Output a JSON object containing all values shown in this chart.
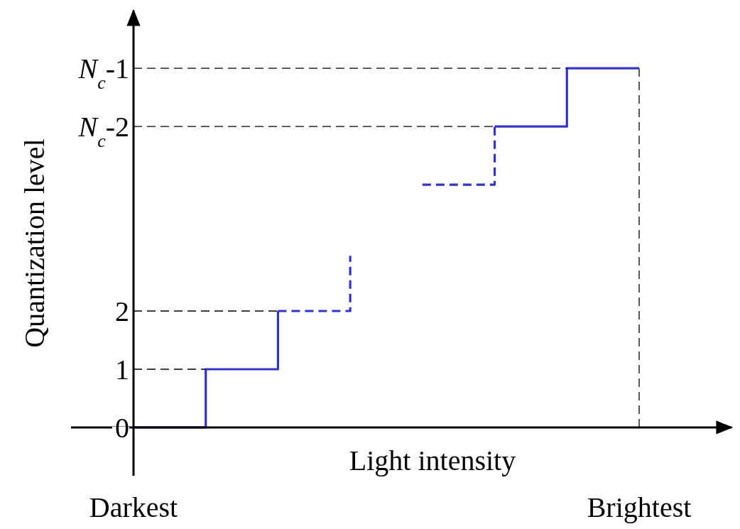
{
  "chart_data": {
    "type": "step",
    "xlabel": "Light intensity",
    "ylabel": "Quantization level",
    "categories": [
      "Darkest",
      null,
      null,
      null,
      null,
      null,
      null,
      "Brightest"
    ],
    "ylim": [
      -0.83,
      7.16
    ],
    "yticks": [
      0,
      1,
      2
    ],
    "annotations": [
      "N$_{c}$-2",
      "N$_{c}$-1"
    ],
    "ref_lines": [
      {
        "axis": "x",
        "value": "Brightest",
        "color": "#000000",
        "line_style": "dashed"
      }
    ],
    "series": [
      {
        "color": "#3333cc",
        "line_style": "solid",
        "values": [
          0,
          1,
          2,
          null,
          null,
          null,
          null,
          null
        ]
      },
      {
        "color": "#3333cc",
        "line_style": "dashed",
        "values": [
          null,
          null,
          2,
          2.95,
          null,
          null,
          null,
          null
        ]
      },
      {
        "color": "#3333cc",
        "line_style": "dashed",
        "values": [
          null,
          null,
          null,
          null,
          4.17,
          5.17,
          null,
          null
        ]
      },
      {
        "color": "#3333cc",
        "line_style": "solid",
        "values": [
          null,
          null,
          null,
          null,
          null,
          5.17,
          6.17,
          6.17
        ]
      },
      {
        "type": "line",
        "color": "#000000",
        "line_style": "dashed",
        "values": [
          1,
          1,
          null,
          null,
          null,
          null,
          null,
          null
        ]
      },
      {
        "type": "line",
        "color": "#000000",
        "line_style": "dashed",
        "values": [
          2,
          2,
          2,
          null,
          null,
          null,
          null,
          null
        ]
      },
      {
        "type": "line",
        "color": "#000000",
        "line_style": "dashed",
        "values": [
          5.17,
          5.17,
          5.17,
          5.17,
          5.17,
          5.17,
          null,
          null
        ]
      },
      {
        "type": "line",
        "color": "#000000",
        "line_style": "dashed",
        "values": [
          6.17,
          6.17,
          6.17,
          6.17,
          6.17,
          6.17,
          6.17,
          null
        ]
      }
    ]
  }
}
